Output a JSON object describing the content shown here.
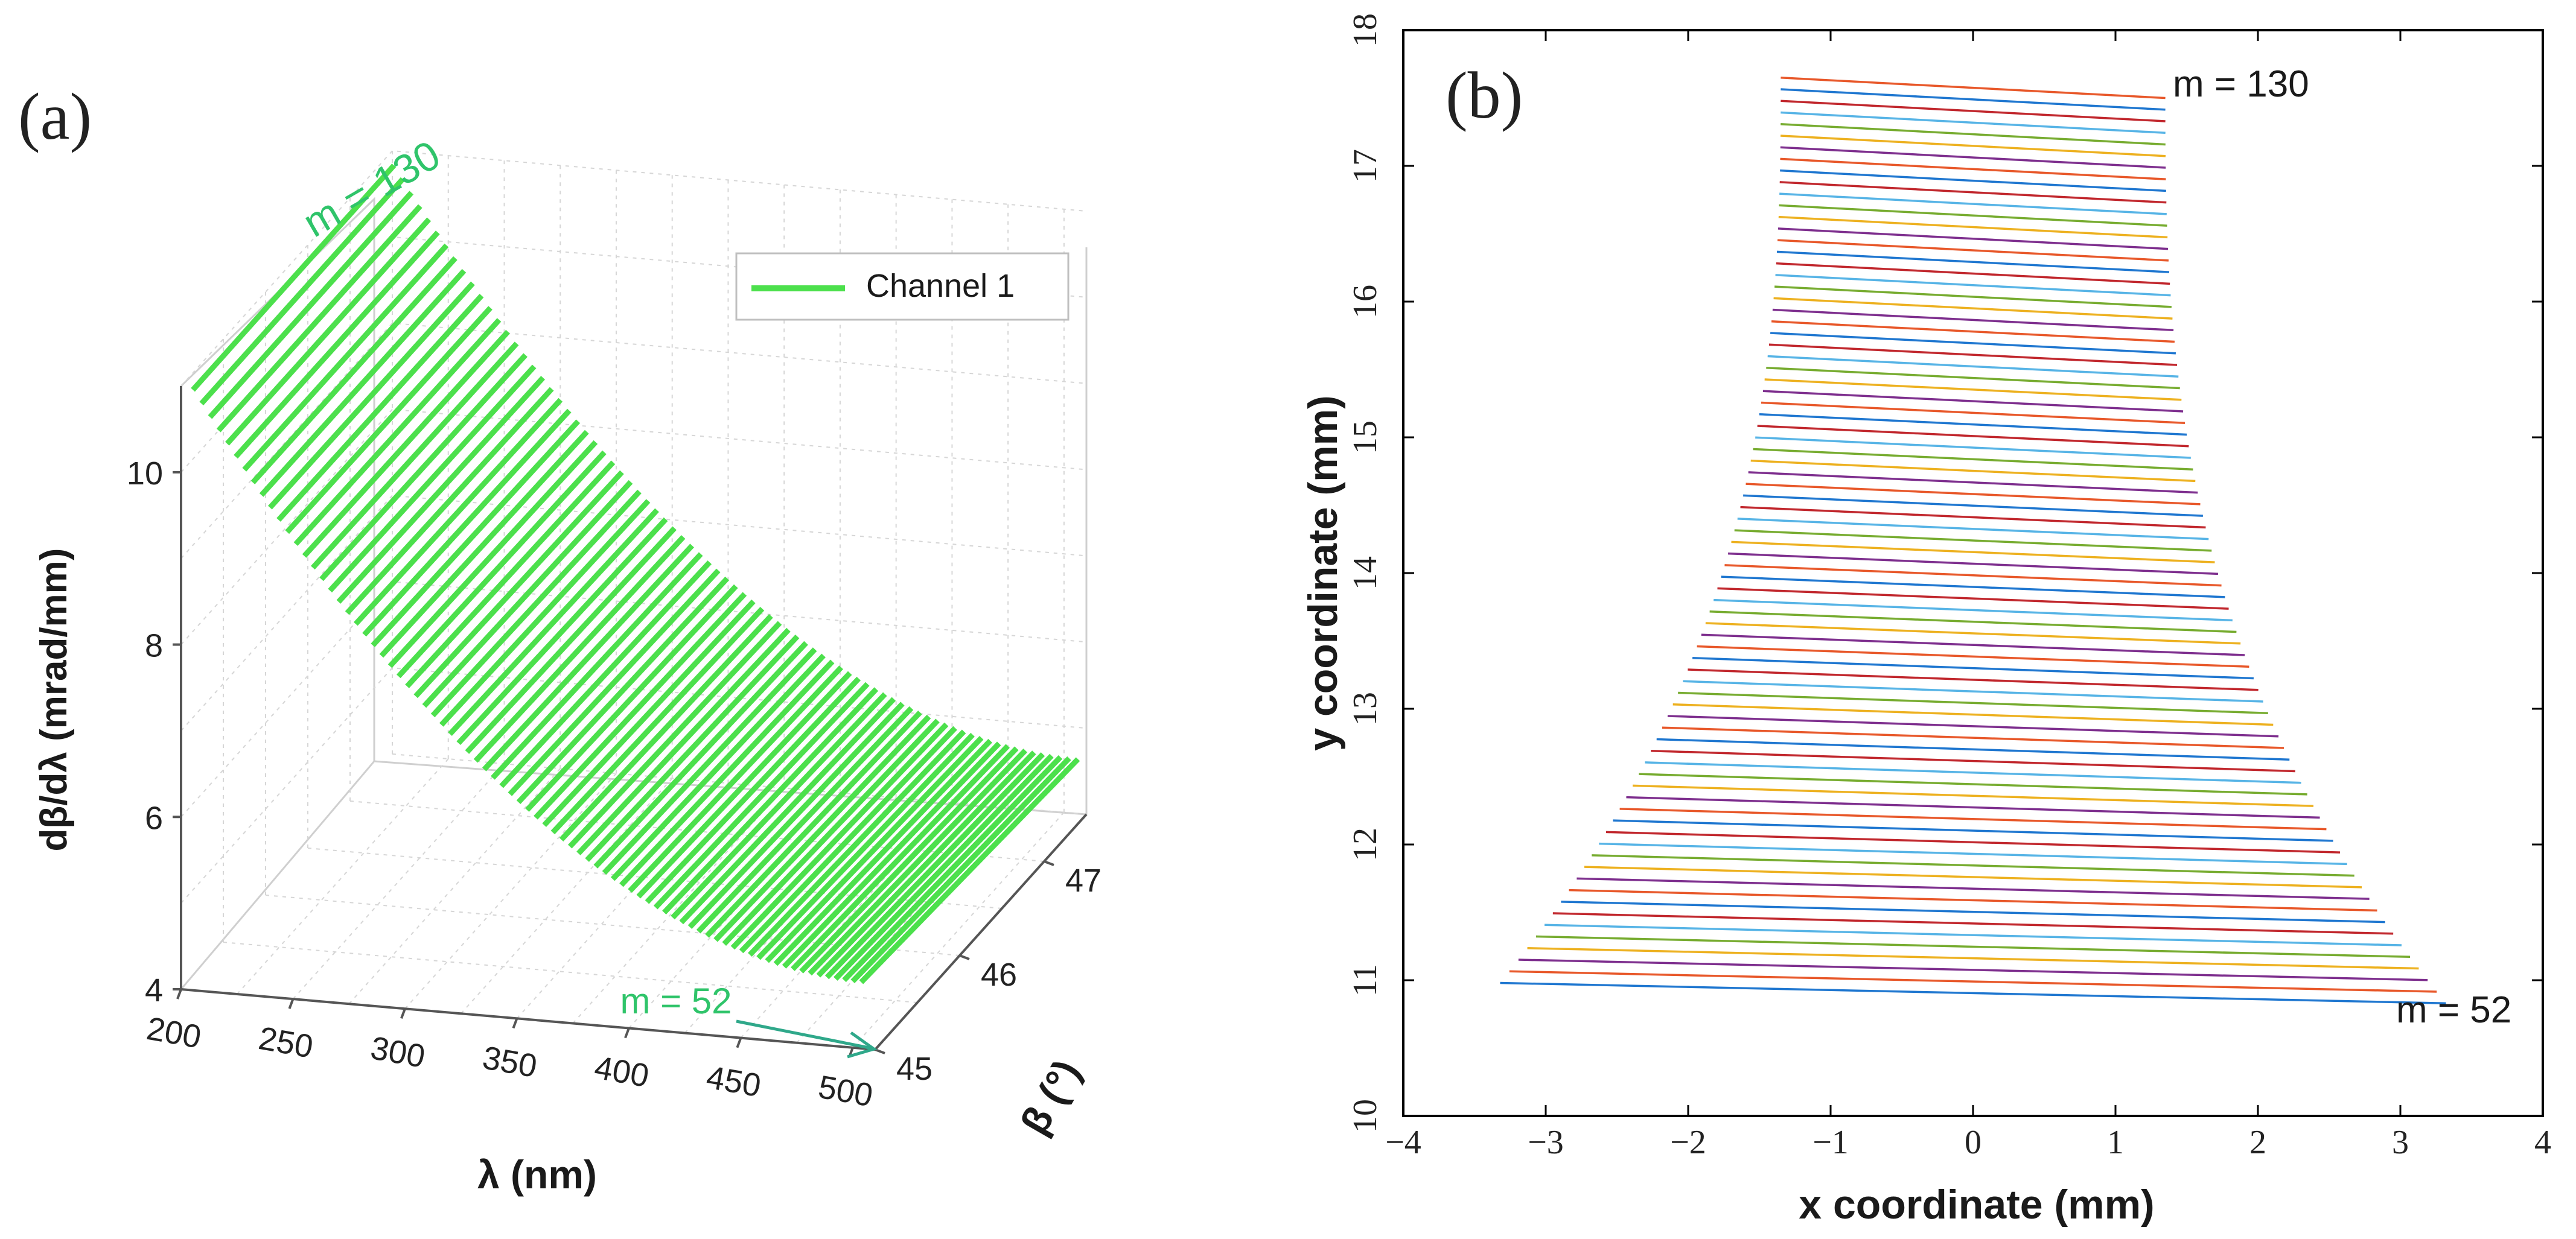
{
  "chart_data": [
    {
      "type": "line3d",
      "panel_label": "(a)",
      "title": "",
      "xlabel": "λ (nm)",
      "ylabel": "β (°)",
      "zlabel": "dβ/dλ (mrad/mm)",
      "xlim": [
        200,
        510
      ],
      "ylim": [
        45,
        47.5
      ],
      "zlim": [
        4,
        11
      ],
      "xticks": [
        "200",
        "250",
        "300",
        "350",
        "400",
        "450",
        "500"
      ],
      "yticks": [
        "45",
        "46",
        "47"
      ],
      "zticks": [
        "4",
        "6",
        "8",
        "10"
      ],
      "grid": true,
      "legend": {
        "position": "top-right",
        "entries": [
          {
            "label": "Channel 1",
            "color": "#4ce04c"
          }
        ]
      },
      "series": {
        "name": "Channel 1",
        "color": "#4ce04c",
        "order_max": 130,
        "order_min": 52,
        "orders": [
          130,
          129,
          128,
          127,
          126,
          125,
          124,
          123,
          122,
          121,
          120,
          119,
          118,
          117,
          116,
          115,
          114,
          113,
          112,
          111,
          110,
          109,
          108,
          107,
          106,
          105,
          104,
          103,
          102,
          101,
          100,
          99,
          98,
          97,
          96,
          95,
          94,
          93,
          92,
          91,
          90,
          89,
          88,
          87,
          86,
          85,
          84,
          83,
          82,
          81,
          80,
          79,
          78,
          77,
          76,
          75,
          74,
          73,
          72,
          71,
          70,
          69,
          68,
          67,
          66,
          65,
          64,
          63,
          62,
          61,
          60,
          59,
          58,
          57,
          56,
          55,
          54,
          53,
          52
        ],
        "lambda_center_at_m52_nm": 505,
        "lambda_center_at_m130_nm": 203,
        "dispersion_at_m52": 4.7,
        "dispersion_at_m130": 10.9,
        "beta_range_deg": [
          45.1,
          47.4
        ]
      },
      "annotations": [
        {
          "text": "m = 130",
          "color": "#2fc46a"
        },
        {
          "text": "m = 52",
          "color": "#2fc46a"
        }
      ]
    },
    {
      "type": "line",
      "panel_label": "(b)",
      "title": "",
      "xlabel": "x coordinate (mm)",
      "ylabel": "y coordinate (mm)",
      "xlim": [
        -4,
        4
      ],
      "ylim": [
        10,
        18
      ],
      "xticks": [
        "−4",
        "−3",
        "−2",
        "−1",
        "0",
        "1",
        "2",
        "3",
        "4"
      ],
      "yticks": [
        "10",
        "11",
        "12",
        "13",
        "14",
        "15",
        "16",
        "17",
        "18"
      ],
      "grid": false,
      "series": {
        "order_max": 130,
        "order_min": 52,
        "orders": [
          130,
          129,
          128,
          127,
          126,
          125,
          124,
          123,
          122,
          121,
          120,
          119,
          118,
          117,
          116,
          115,
          114,
          113,
          112,
          111,
          110,
          109,
          108,
          107,
          106,
          105,
          104,
          103,
          102,
          101,
          100,
          99,
          98,
          97,
          96,
          95,
          94,
          93,
          92,
          91,
          90,
          89,
          88,
          87,
          86,
          85,
          84,
          83,
          82,
          81,
          80,
          79,
          78,
          77,
          76,
          75,
          74,
          73,
          72,
          71,
          70,
          69,
          68,
          67,
          66,
          65,
          64,
          63,
          62,
          61,
          60,
          59,
          58,
          57,
          56,
          55,
          54,
          53,
          52
        ],
        "y_top_order_mm": 17.65,
        "y_bottom_order_mm": 10.98,
        "x_left_top_mm": -1.35,
        "x_right_top_mm": 1.35,
        "x_left_bottom_mm": -3.32,
        "x_right_bottom_mm": 3.32,
        "line_tilt_mm": -0.15,
        "colors": [
          "#e8582a",
          "#1f77d0",
          "#c1272d",
          "#57b4e6",
          "#77ac30",
          "#edb120",
          "#7e2f8e"
        ]
      },
      "annotations": [
        {
          "text": "m = 130",
          "color": "#000000"
        },
        {
          "text": "m = 52",
          "color": "#000000"
        }
      ]
    }
  ]
}
